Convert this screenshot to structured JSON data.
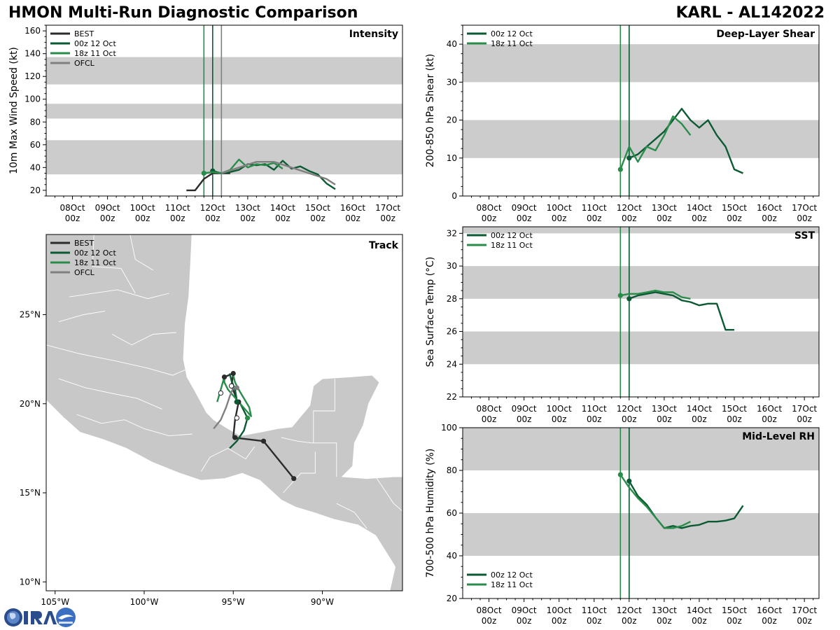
{
  "header": {
    "title": "HMON Multi-Run Diagnostic Comparison",
    "storm": "KARL - AL142022"
  },
  "colors": {
    "BEST": "#2b2b2b",
    "00z 12 Oct": "#0b5a33",
    "18z 11 Oct": "#2a8c4a",
    "OFCL": "#808080",
    "band": "#cccccc",
    "land": "#c8c8c8"
  },
  "time_axis": {
    "ticks": [
      {
        "t": 0,
        "l1": "08Oct",
        "l2": "00z"
      },
      {
        "t": 24,
        "l1": "09Oct",
        "l2": "00z"
      },
      {
        "t": 48,
        "l1": "10Oct",
        "l2": "00z"
      },
      {
        "t": 72,
        "l1": "11Oct",
        "l2": "00z"
      },
      {
        "t": 96,
        "l1": "12Oct",
        "l2": "00z"
      },
      {
        "t": 120,
        "l1": "13Oct",
        "l2": "00z"
      },
      {
        "t": 144,
        "l1": "14Oct",
        "l2": "00z"
      },
      {
        "t": 168,
        "l1": "15Oct",
        "l2": "00z"
      },
      {
        "t": 192,
        "l1": "16Oct",
        "l2": "00z"
      },
      {
        "t": 216,
        "l1": "17Oct",
        "l2": "00z"
      }
    ],
    "range_hours": [
      -18,
      226
    ],
    "init_lines": [
      {
        "run": "18z 11 Oct",
        "t": 90
      },
      {
        "run": "00z 12 Oct",
        "t": 96
      },
      {
        "run": "OFCL",
        "t": 102
      }
    ]
  },
  "chart_data": [
    {
      "id": "intensity",
      "type": "line",
      "title": "Intensity",
      "ylabel": "10m Max Wind Speed (kt)",
      "ylim": [
        15,
        165
      ],
      "yticks": [
        20,
        40,
        60,
        80,
        100,
        120,
        140,
        160
      ],
      "bands": [
        [
          34,
          64
        ],
        [
          83,
          96
        ],
        [
          113,
          137
        ]
      ],
      "legend": [
        "BEST",
        "00z 12 Oct",
        "18z 11 Oct",
        "OFCL"
      ],
      "legend_position": "top-left",
      "show_init_lines": [
        "18z 11 Oct",
        "00z 12 Oct",
        "OFCL"
      ],
      "series": [
        {
          "name": "BEST",
          "t": [
            78,
            84,
            90,
            96,
            102,
            108
          ],
          "values": [
            20,
            20,
            30,
            35,
            35,
            35
          ]
        },
        {
          "name": "00z 12 Oct",
          "t": [
            96,
            102,
            108,
            114,
            120,
            126,
            132,
            138,
            144,
            150,
            156,
            162,
            168,
            174,
            180
          ],
          "values": [
            37,
            35,
            36,
            38,
            43,
            42,
            43,
            38,
            46,
            39,
            41,
            37,
            34,
            26,
            21
          ]
        },
        {
          "name": "18z 11 Oct",
          "t": [
            90,
            96,
            102,
            108,
            114,
            120,
            126,
            132,
            138,
            144
          ],
          "values": [
            35,
            36,
            35,
            38,
            47,
            40,
            43,
            42,
            44,
            39
          ]
        },
        {
          "name": "OFCL",
          "t": [
            102,
            114,
            126,
            138,
            150,
            162,
            174,
            180
          ],
          "values": [
            35,
            40,
            45,
            45,
            40,
            35,
            30,
            25
          ]
        }
      ]
    },
    {
      "id": "shear",
      "type": "line",
      "title": "Deep-Layer Shear",
      "ylabel": "200-850 hPa Shear (kt)",
      "ylim": [
        0,
        45
      ],
      "yticks": [
        0,
        10,
        20,
        30,
        40
      ],
      "bands": [
        [
          10,
          20
        ],
        [
          30,
          40
        ]
      ],
      "legend": [
        "00z 12 Oct",
        "18z 11 Oct"
      ],
      "legend_position": "top-left",
      "show_init_lines": [
        "18z 11 Oct",
        "00z 12 Oct"
      ],
      "series": [
        {
          "name": "00z 12 Oct",
          "t": [
            96,
            102,
            108,
            114,
            120,
            126,
            132,
            138,
            144,
            150,
            156,
            162,
            168,
            174
          ],
          "values": [
            10,
            11,
            13,
            15,
            17,
            20,
            23,
            20,
            18,
            20,
            16,
            13,
            7,
            6
          ]
        },
        {
          "name": "18z 11 Oct",
          "t": [
            90,
            96,
            102,
            108,
            114,
            120,
            126,
            132,
            138
          ],
          "values": [
            7,
            13,
            9,
            13,
            12,
            16,
            21,
            19,
            16
          ]
        }
      ]
    },
    {
      "id": "sst",
      "type": "line",
      "title": "SST",
      "ylabel": "Sea Surface Temp (°C)",
      "ylim": [
        22,
        32.4
      ],
      "yticks": [
        22,
        24,
        26,
        28,
        30,
        32
      ],
      "bands": [
        [
          24,
          26
        ],
        [
          28,
          30
        ],
        [
          32,
          34
        ]
      ],
      "legend": [
        "00z 12 Oct",
        "18z 11 Oct"
      ],
      "legend_position": "top-left",
      "show_init_lines": [
        "18z 11 Oct",
        "00z 12 Oct"
      ],
      "series": [
        {
          "name": "00z 12 Oct",
          "t": [
            96,
            102,
            108,
            114,
            120,
            126,
            132,
            138,
            144,
            150,
            156,
            162,
            168
          ],
          "values": [
            28.0,
            28.2,
            28.3,
            28.4,
            28.3,
            28.2,
            27.9,
            27.8,
            27.6,
            27.7,
            27.7,
            26.1,
            26.1
          ]
        },
        {
          "name": "18z 11 Oct",
          "t": [
            90,
            96,
            102,
            108,
            114,
            120,
            126,
            132,
            138
          ],
          "values": [
            28.2,
            28.3,
            28.3,
            28.4,
            28.5,
            28.4,
            28.4,
            28.1,
            28.0
          ]
        }
      ]
    },
    {
      "id": "rh",
      "type": "line",
      "title": "Mid-Level RH",
      "ylabel": "700-500 hPa Humidity (%)",
      "ylim": [
        20,
        100
      ],
      "yticks": [
        20,
        40,
        60,
        80,
        100
      ],
      "bands": [
        [
          40,
          60
        ],
        [
          80,
          100
        ]
      ],
      "legend": [
        "00z 12 Oct",
        "18z 11 Oct"
      ],
      "legend_position": "bottom-left",
      "show_init_lines": [
        "18z 11 Oct",
        "00z 12 Oct"
      ],
      "series": [
        {
          "name": "00z 12 Oct",
          "t": [
            96,
            102,
            108,
            114,
            120,
            126,
            132,
            138,
            144,
            150,
            156,
            162,
            168,
            174
          ],
          "values": [
            75,
            68,
            64,
            58,
            53,
            54,
            53,
            54,
            54.5,
            56,
            56,
            56.5,
            57.5,
            63.5
          ]
        },
        {
          "name": "18z 11 Oct",
          "t": [
            90,
            96,
            102,
            108,
            114,
            120,
            126,
            132,
            138
          ],
          "values": [
            78,
            72,
            67,
            63,
            58,
            53,
            53,
            54,
            56
          ]
        }
      ]
    },
    {
      "id": "track",
      "type": "scatter",
      "title": "Track",
      "xlim": [
        -105.5,
        -85.5
      ],
      "ylim": [
        9.5,
        29.5
      ],
      "xticks": [
        {
          "v": -105,
          "label": "105°W"
        },
        {
          "v": -100,
          "label": "100°W"
        },
        {
          "v": -95,
          "label": "95°W"
        },
        {
          "v": -90,
          "label": "90°W"
        }
      ],
      "yticks": [
        {
          "v": 10,
          "label": "10°N"
        },
        {
          "v": 15,
          "label": "15°N"
        },
        {
          "v": 20,
          "label": "20°N"
        },
        {
          "v": 25,
          "label": "25°N"
        }
      ],
      "legend": [
        "BEST",
        "00z 12 Oct",
        "18z 11 Oct",
        "OFCL"
      ],
      "legend_position": "top-left",
      "series": [
        {
          "name": "BEST",
          "lon": [
            -95.5,
            -95.0,
            -95.1,
            -94.9,
            -94.8,
            -94.7,
            -94.9,
            -95.0,
            -93.3,
            -91.6
          ],
          "lat": [
            21.5,
            21.7,
            21.0,
            20.5,
            20.1,
            20.1,
            19.1,
            18.1,
            17.9,
            15.8
          ]
        },
        {
          "name": "00z 12 Oct",
          "lon": [
            -95.2,
            -95.1,
            -94.9,
            -94.8,
            -94.6,
            -94.4,
            -94.2,
            -94.4,
            -94.8,
            -95.2
          ],
          "lat": [
            21.7,
            21.3,
            20.8,
            20.2,
            20.0,
            19.6,
            19.2,
            18.5,
            17.9,
            17.5
          ]
        },
        {
          "name": "18z 11 Oct",
          "lon": [
            -95.0,
            -94.9,
            -94.7,
            -94.4,
            -94.1,
            -94.0,
            -95.3,
            -95.5,
            -95.5,
            -95.9
          ],
          "lat": [
            21.6,
            21.2,
            20.8,
            20.3,
            19.8,
            19.3,
            20.8,
            21.2,
            21.5,
            20.1
          ]
        },
        {
          "name": "OFCL",
          "lon": [
            -94.8,
            -95.0,
            -95.2,
            -95.4,
            -95.7,
            -96.1
          ],
          "lat": [
            20.9,
            20.9,
            20.4,
            19.8,
            19.1,
            18.6
          ]
        }
      ],
      "markers": {
        "best_points": [
          [
            -95.5,
            21.5
          ],
          [
            -95.0,
            21.7
          ],
          [
            -95.1,
            21.0
          ],
          [
            -94.8,
            20.1
          ],
          [
            -94.7,
            20.1
          ],
          [
            -94.9,
            18.1
          ],
          [
            -93.3,
            17.9
          ],
          [
            -91.6,
            15.8
          ]
        ],
        "best_open": [
          [
            -95.1,
            21.0
          ],
          [
            -95.7,
            20.6
          ],
          [
            -94.8,
            19.2
          ]
        ],
        "run_00z": [
          [
            -94.8,
            20.1
          ]
        ],
        "run_18z": [
          [
            -94.2,
            19.2
          ]
        ],
        "ofcl_start": [
          [
            -94.8,
            20.9
          ]
        ]
      }
    }
  ]
}
